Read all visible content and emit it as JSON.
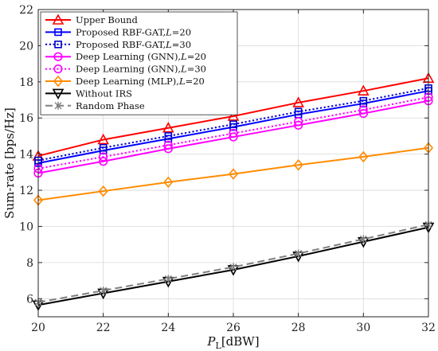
{
  "chart_data": {
    "type": "line",
    "title": "",
    "xlabel": "P_L[dBW]",
    "xlabel_main": "P",
    "xlabel_sub": "L",
    "xlabel_unit": "[dBW]",
    "ylabel": "Sum-rate [bps/Hz]",
    "x": [
      20,
      22,
      24,
      26,
      28,
      30,
      32
    ],
    "xlim": [
      20,
      32
    ],
    "ylim": [
      5,
      22
    ],
    "xticks": [
      "20",
      "22",
      "24",
      "26",
      "28",
      "30",
      "32"
    ],
    "yticks": [
      "6",
      "8",
      "10",
      "12",
      "14",
      "16",
      "18",
      "20",
      "22"
    ],
    "grid": true,
    "legend_position": "top-left",
    "series": [
      {
        "name": "Upper Bound",
        "legend_main": "Upper Bound",
        "legend_italic": "",
        "legend_tail": "",
        "values": [
          13.9,
          14.8,
          15.45,
          16.1,
          16.85,
          17.5,
          18.2
        ],
        "color": "#ff0000",
        "dash": "solid",
        "marker": "triangle-up"
      },
      {
        "name": "Proposed RBF-GAT,L=20",
        "legend_main": "Proposed RBF-GAT,",
        "legend_italic": "L",
        "legend_tail": "=20",
        "values": [
          13.5,
          14.2,
          14.85,
          15.5,
          16.2,
          16.8,
          17.5
        ],
        "color": "#0000ff",
        "dash": "solid",
        "marker": "square"
      },
      {
        "name": "Proposed RBF-GAT,L=30",
        "legend_main": "Proposed RBF-GAT,",
        "legend_italic": "L",
        "legend_tail": "=30",
        "values": [
          13.65,
          14.35,
          15.0,
          15.65,
          16.35,
          16.95,
          17.65
        ],
        "color": "#0000cc",
        "dash": "dotted",
        "marker": "square"
      },
      {
        "name": "Deep Learning (GNN),L=20",
        "legend_main": "Deep Learning (GNN),",
        "legend_italic": "L",
        "legend_tail": "=20",
        "values": [
          12.95,
          13.6,
          14.3,
          14.95,
          15.6,
          16.25,
          16.95
        ],
        "color": "#ff00ff",
        "dash": "solid",
        "marker": "circle"
      },
      {
        "name": "Deep Learning (GNN),L=30",
        "legend_main": "Deep Learning (GNN),",
        "legend_italic": "L",
        "legend_tail": "=30",
        "values": [
          13.2,
          13.85,
          14.5,
          15.15,
          15.8,
          16.45,
          17.15
        ],
        "color": "#ff00ff",
        "dash": "dotted",
        "marker": "circle"
      },
      {
        "name": "Deep Learning (MLP),L=20",
        "legend_main": "Deep Learning (MLP),",
        "legend_italic": "L",
        "legend_tail": "=20",
        "values": [
          11.45,
          11.95,
          12.45,
          12.9,
          13.4,
          13.85,
          14.35
        ],
        "color": "#ff8c00",
        "dash": "solid",
        "marker": "diamond"
      },
      {
        "name": "Without IRS",
        "legend_main": "Without IRS",
        "legend_italic": "",
        "legend_tail": "",
        "values": [
          5.65,
          6.3,
          6.95,
          7.6,
          8.35,
          9.15,
          9.95
        ],
        "color": "#000000",
        "dash": "solid",
        "marker": "triangle-down"
      },
      {
        "name": "Random Phase",
        "legend_main": "Random Phase",
        "legend_italic": "",
        "legend_tail": "",
        "values": [
          5.8,
          6.45,
          7.1,
          7.75,
          8.5,
          9.3,
          10.1
        ],
        "color": "#808080",
        "dash": "dashed",
        "marker": "x"
      }
    ]
  }
}
